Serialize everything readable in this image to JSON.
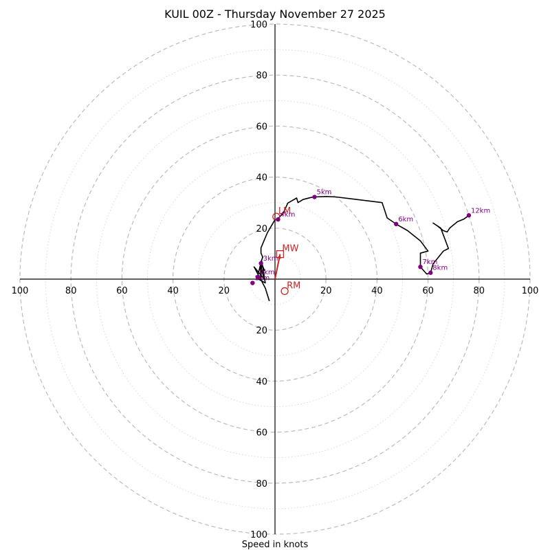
{
  "chart_data": {
    "type": "hodograph",
    "title": "KUIL 00Z - Thursday November 27 2025",
    "xlabel": "Speed in knots",
    "ring_range": [
      0,
      100
    ],
    "major_rings": [
      20,
      40,
      60,
      80,
      100
    ],
    "minor_rings": [
      10,
      30,
      50,
      70,
      90
    ],
    "x_ticks": [
      "100",
      "80",
      "60",
      "40",
      "20",
      "20",
      "40",
      "60",
      "80",
      "100"
    ],
    "x_tick_values": [
      -100,
      -80,
      -60,
      -40,
      -20,
      20,
      40,
      60,
      80,
      100
    ],
    "y_ticks": [
      "100",
      "80",
      "60",
      "40",
      "20",
      "20",
      "40",
      "60",
      "80",
      "100"
    ],
    "y_tick_values": [
      100,
      80,
      60,
      40,
      20,
      -20,
      -40,
      -60,
      -80,
      -100
    ],
    "grid": true,
    "line_color": "#000000",
    "marker_color": "#800080",
    "motion_color": "#cc2222",
    "wind_profile_uv": [
      [
        -2.2,
        -8.6
      ],
      [
        -3.8,
        -3.5
      ],
      [
        -8.2,
        4.8
      ],
      [
        -4.2,
        0.0
      ],
      [
        -5.8,
        5.8
      ],
      [
        -5.5,
        0.2
      ],
      [
        -5.2,
        7.1
      ],
      [
        -3.8,
        -1.5
      ],
      [
        -7.0,
        0.3
      ],
      [
        -5.5,
        6.5
      ],
      [
        -4.2,
        3.5
      ],
      [
        -5.5,
        6.8
      ],
      [
        -4.8,
        8.6
      ],
      [
        -5.5,
        10.2
      ],
      [
        -5.5,
        12.2
      ],
      [
        -3.0,
        18.2
      ],
      [
        -0.2,
        23.0
      ],
      [
        1.2,
        23.8
      ],
      [
        3.2,
        25.8
      ],
      [
        5.0,
        29.8
      ],
      [
        8.5,
        31.8
      ],
      [
        9.0,
        30.0
      ],
      [
        11.0,
        31.2
      ],
      [
        14.0,
        32.0
      ],
      [
        15.5,
        32.2
      ],
      [
        20.0,
        32.4
      ],
      [
        24.0,
        32.2
      ],
      [
        42.0,
        30.0
      ],
      [
        44.0,
        24.0
      ],
      [
        47.5,
        21.6
      ],
      [
        52.0,
        19.0
      ],
      [
        57.0,
        15.0
      ],
      [
        60.0,
        11.0
      ],
      [
        57.0,
        10.2
      ],
      [
        57.0,
        6.5
      ],
      [
        57.0,
        4.8
      ],
      [
        59.5,
        2.0
      ],
      [
        61.0,
        2.5
      ],
      [
        62.0,
        6.0
      ],
      [
        66.0,
        11.0
      ],
      [
        68.0,
        12.0
      ],
      [
        65.0,
        20.0
      ],
      [
        62.0,
        22.0
      ],
      [
        63.5,
        21.0
      ],
      [
        66.0,
        19.0
      ],
      [
        67.5,
        18.5
      ],
      [
        68.5,
        20.0
      ],
      [
        71.5,
        22.5
      ],
      [
        74.0,
        23.5
      ],
      [
        76.0,
        25.0
      ]
    ],
    "height_markers": [
      {
        "label": "1km",
        "u": -8.8,
        "v": -1.5
      },
      {
        "label": "2km",
        "u": -6.8,
        "v": 0.8
      },
      {
        "label": "3km",
        "u": -5.5,
        "v": 6.2
      },
      {
        "label": "4km",
        "u": 1.2,
        "v": 23.4
      },
      {
        "label": "5km",
        "u": 15.5,
        "v": 32.2
      },
      {
        "label": "6km",
        "u": 47.5,
        "v": 21.6
      },
      {
        "label": "7km",
        "u": 57.0,
        "v": 4.8
      },
      {
        "label": "8km",
        "u": 61.0,
        "v": 2.5
      },
      {
        "label": "12km",
        "u": 76.0,
        "v": 25.0
      }
    ],
    "storm_motions": [
      {
        "label": "LM",
        "u": 0.5,
        "v": 24.5,
        "marker": "circle"
      },
      {
        "label": "MW",
        "u": 2.0,
        "v": 9.8,
        "marker": "square"
      },
      {
        "label": "RM",
        "u": 3.8,
        "v": -4.7,
        "marker": "circle"
      }
    ],
    "mean_wind_vector": {
      "from": [
        0,
        0
      ],
      "to": [
        2.0,
        9.8
      ]
    }
  }
}
